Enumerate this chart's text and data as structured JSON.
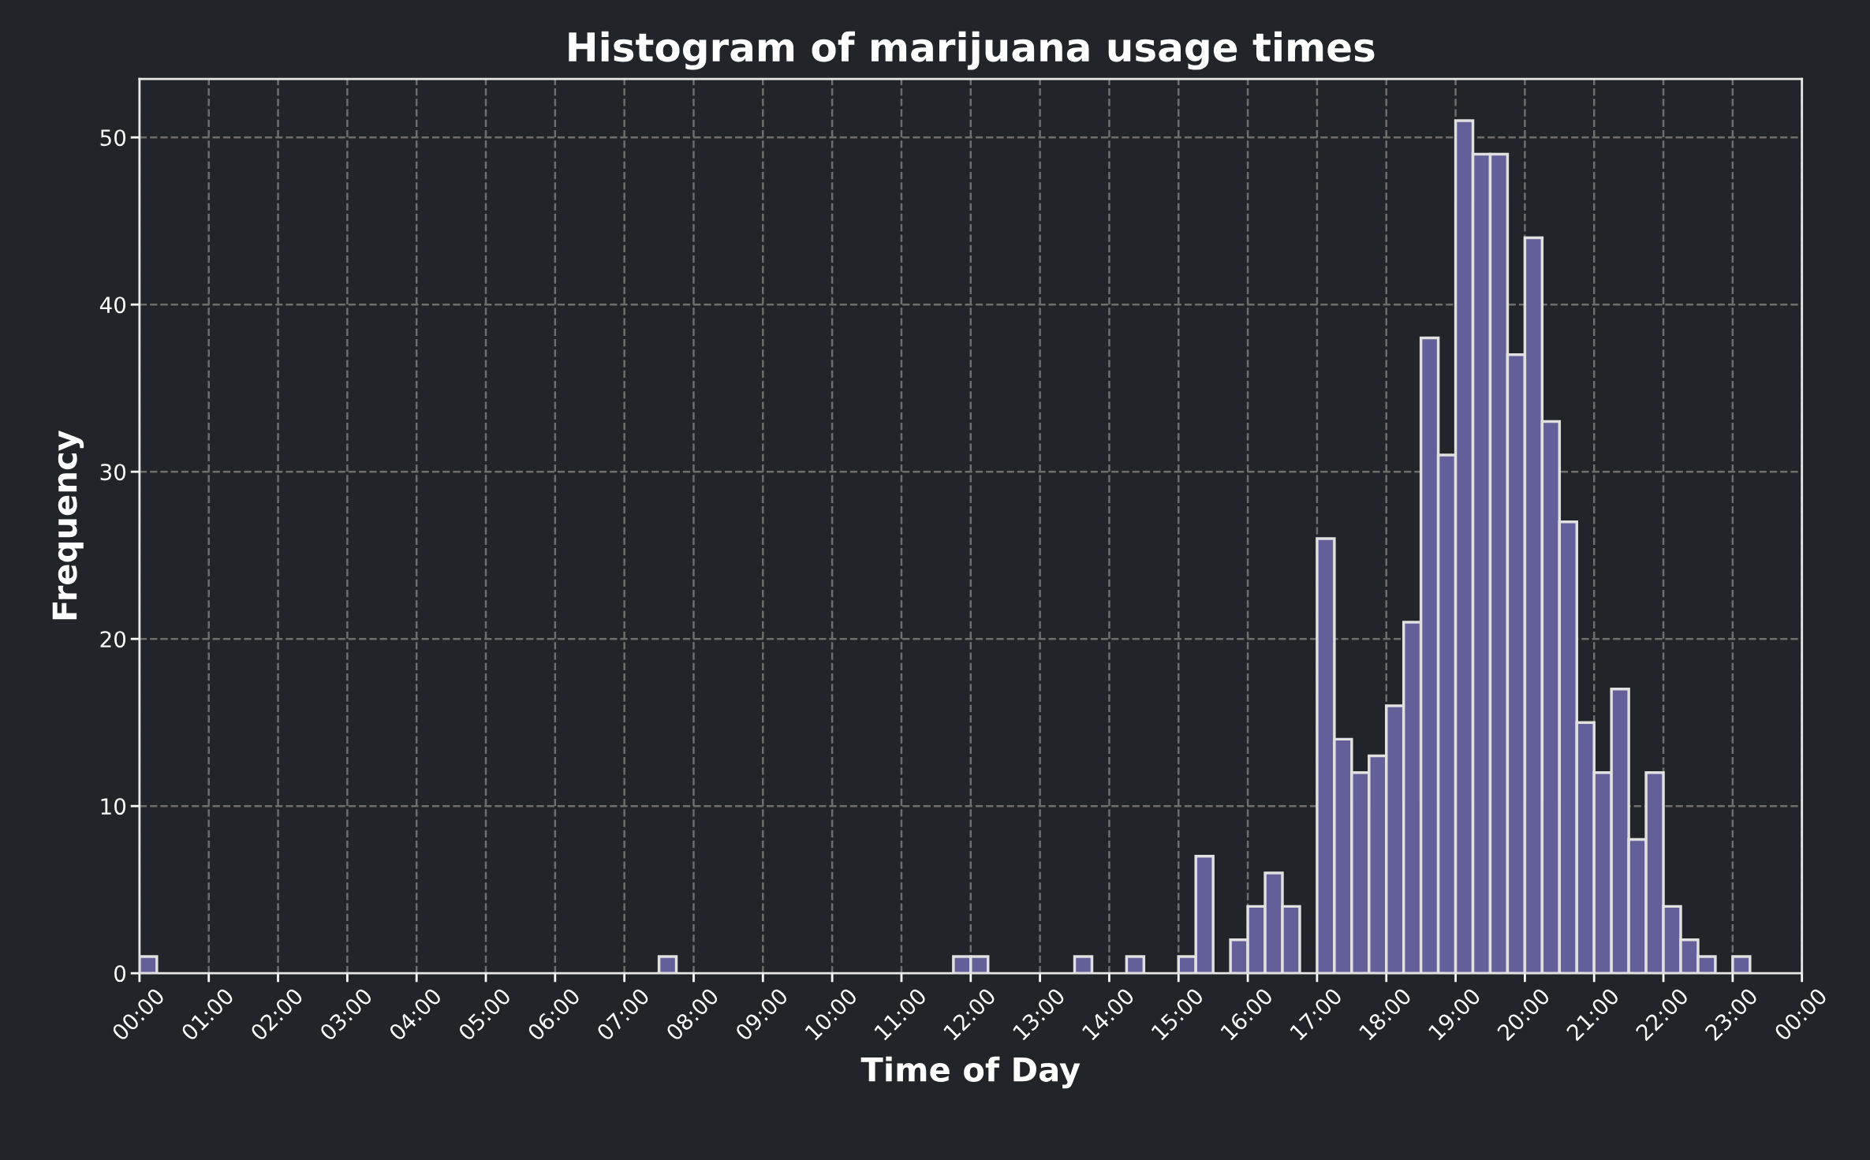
{
  "chart_data": {
    "type": "histogram",
    "title": "Histogram of marijuana usage times",
    "xlabel": "Time of Day",
    "ylabel": "Frequency",
    "bins": [
      0,
      0.25,
      0.5,
      0.75,
      1,
      1.25,
      1.5,
      1.75,
      2,
      2.25,
      2.5,
      2.75,
      3,
      3.25,
      3.5,
      3.75,
      4,
      4.25,
      4.5,
      4.75,
      5,
      5.25,
      5.5,
      5.75,
      6,
      6.25,
      6.5,
      6.75,
      7,
      7.25,
      7.5,
      7.75,
      8,
      8.25,
      8.5,
      8.75,
      9,
      9.25,
      9.5,
      9.75,
      10,
      10.25,
      10.5,
      10.75,
      11,
      11.25,
      11.5,
      11.75,
      12,
      12.25,
      12.5,
      12.75,
      13,
      13.25,
      13.5,
      13.75,
      14,
      14.25,
      14.5,
      14.75,
      15,
      15.25,
      15.5,
      15.75,
      16,
      16.25,
      16.5,
      16.75,
      17,
      17.25,
      17.5,
      17.75,
      18,
      18.25,
      18.5,
      18.75,
      19,
      19.25,
      19.5,
      19.75,
      20,
      20.25,
      20.5,
      20.75,
      21,
      21.25,
      21.5,
      21.75,
      22,
      22.25,
      22.5,
      22.75,
      23,
      23.25,
      23.5,
      23.75,
      24
    ],
    "values": [
      1,
      0,
      0,
      0,
      0,
      0,
      0,
      0,
      0,
      0,
      0,
      0,
      0,
      0,
      0,
      0,
      0,
      0,
      0,
      0,
      0,
      0,
      0,
      0,
      0,
      0,
      0,
      0,
      0,
      0,
      1,
      0,
      0,
      0,
      0,
      0,
      0,
      0,
      0,
      0,
      0,
      0,
      0,
      0,
      0,
      0,
      0,
      1,
      1,
      0,
      0,
      0,
      0,
      0,
      1,
      0,
      0,
      1,
      0,
      0,
      1,
      7,
      0,
      2,
      4,
      6,
      4,
      0,
      26,
      14,
      12,
      13,
      16,
      21,
      38,
      31,
      51,
      49,
      49,
      37,
      44,
      33,
      27,
      15,
      12,
      17,
      8,
      12,
      4,
      2,
      1,
      0,
      1,
      0,
      0,
      0
    ],
    "color": "#635f99",
    "xlim": [
      0,
      24
    ],
    "xticks": [
      {
        "value": 0,
        "label": "00:00"
      },
      {
        "value": 1,
        "label": "01:00"
      },
      {
        "value": 2,
        "label": "02:00"
      },
      {
        "value": 3,
        "label": "03:00"
      },
      {
        "value": 4,
        "label": "04:00"
      },
      {
        "value": 5,
        "label": "05:00"
      },
      {
        "value": 6,
        "label": "06:00"
      },
      {
        "value": 7,
        "label": "07:00"
      },
      {
        "value": 8,
        "label": "08:00"
      },
      {
        "value": 9,
        "label": "09:00"
      },
      {
        "value": 10,
        "label": "10:00"
      },
      {
        "value": 11,
        "label": "11:00"
      },
      {
        "value": 12,
        "label": "12:00"
      },
      {
        "value": 13,
        "label": "13:00"
      },
      {
        "value": 14,
        "label": "14:00"
      },
      {
        "value": 15,
        "label": "15:00"
      },
      {
        "value": 16,
        "label": "16:00"
      },
      {
        "value": 17,
        "label": "17:00"
      },
      {
        "value": 18,
        "label": "18:00"
      },
      {
        "value": 19,
        "label": "19:00"
      },
      {
        "value": 20,
        "label": "20:00"
      },
      {
        "value": 21,
        "label": "21:00"
      },
      {
        "value": 22,
        "label": "22:00"
      },
      {
        "value": 23,
        "label": "23:00"
      },
      {
        "value": 24,
        "label": "00:00"
      }
    ],
    "ylim": [
      0,
      53.5
    ],
    "yticks": [
      0,
      10,
      20,
      30,
      40,
      50
    ],
    "grid": true
  }
}
